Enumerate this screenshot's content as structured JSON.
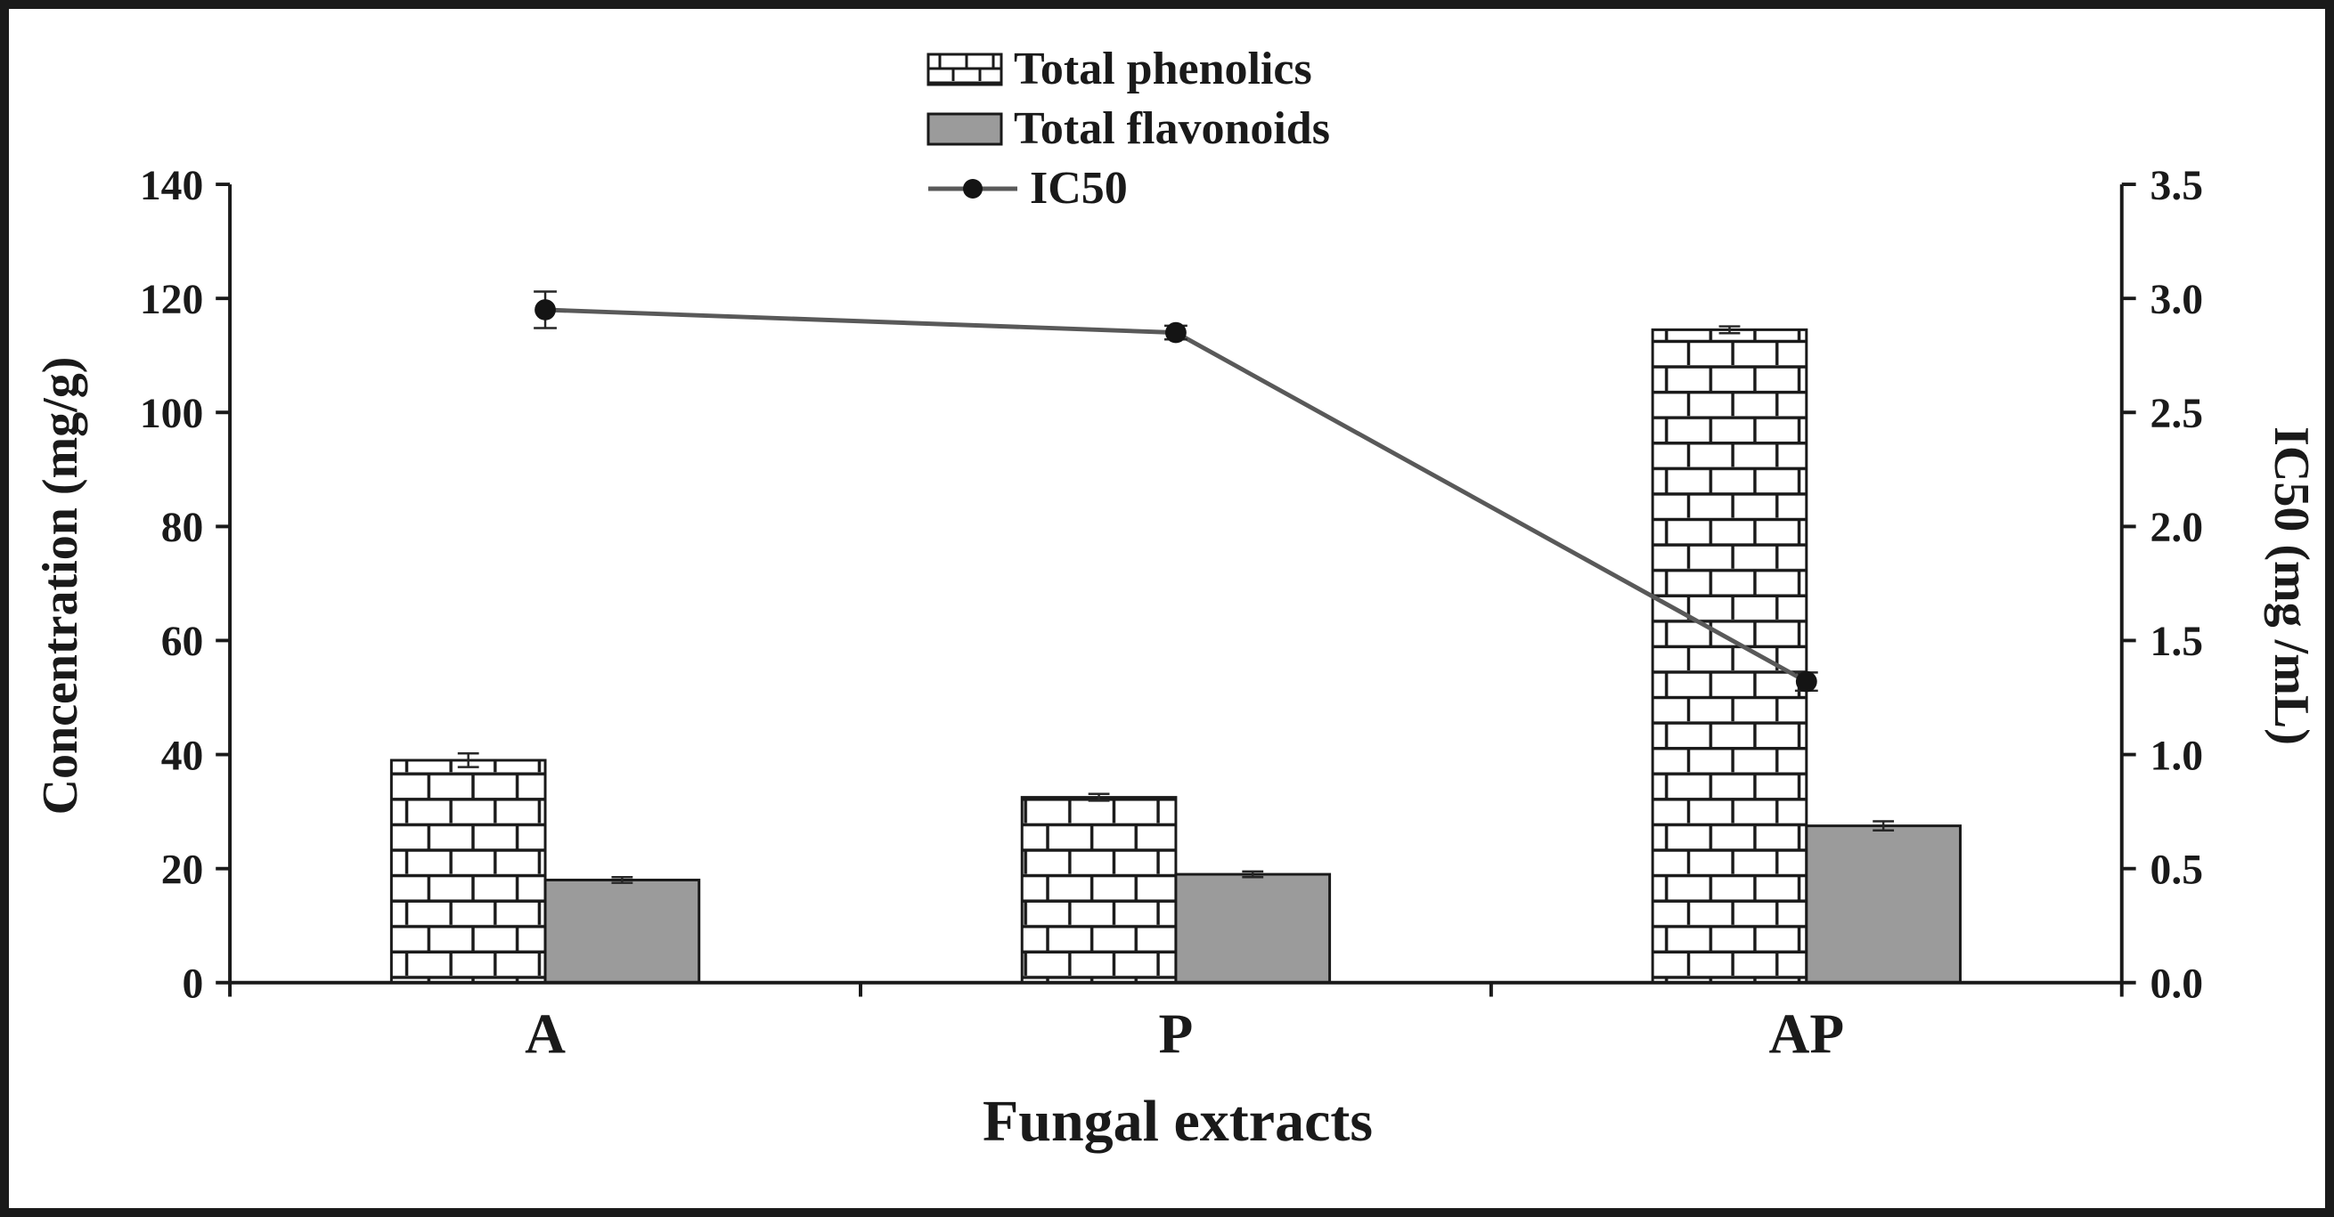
{
  "chart_data": {
    "type": "bar",
    "subtype": "grouped-bars-with-line-overlay",
    "categories": [
      "A",
      "P",
      "AP"
    ],
    "bar_series": [
      {
        "name": "Total phenolics",
        "values": [
          39,
          32.5,
          114.5
        ],
        "errors": [
          1.2,
          0.6,
          0.6
        ],
        "fill_style": "brick-pattern"
      },
      {
        "name": "Total flavonoids",
        "values": [
          18,
          19,
          27.5
        ],
        "errors": [
          0.5,
          0.5,
          0.8
        ],
        "fill_style": "solid",
        "fill_color": "#9b9b9b"
      }
    ],
    "line_series": [
      {
        "name": "IC50",
        "values": [
          2.95,
          2.85,
          1.32
        ],
        "errors": [
          0.08,
          0.03,
          0.04
        ],
        "line_color": "#595959",
        "marker_color": "#141414"
      }
    ],
    "left_axis": {
      "label": "Concentration (mg/g)",
      "min": 0,
      "max": 140,
      "ticks": [
        0,
        20,
        40,
        60,
        80,
        100,
        120,
        140
      ]
    },
    "right_axis": {
      "label": "IC50 (mg /mL)",
      "min": 0,
      "max": 3.5,
      "ticks": [
        "0.0",
        "0.5",
        "1.0",
        "1.5",
        "2.0",
        "2.5",
        "3.0",
        "3.5"
      ]
    },
    "x_axis": {
      "label": "Fungal extracts"
    },
    "legend": {
      "position": "top-center",
      "items": [
        "Total phenolics",
        "Total flavonoids",
        "IC50"
      ]
    },
    "grid": false,
    "background": "#ffffff",
    "frame_color": "#1a1a1a"
  }
}
